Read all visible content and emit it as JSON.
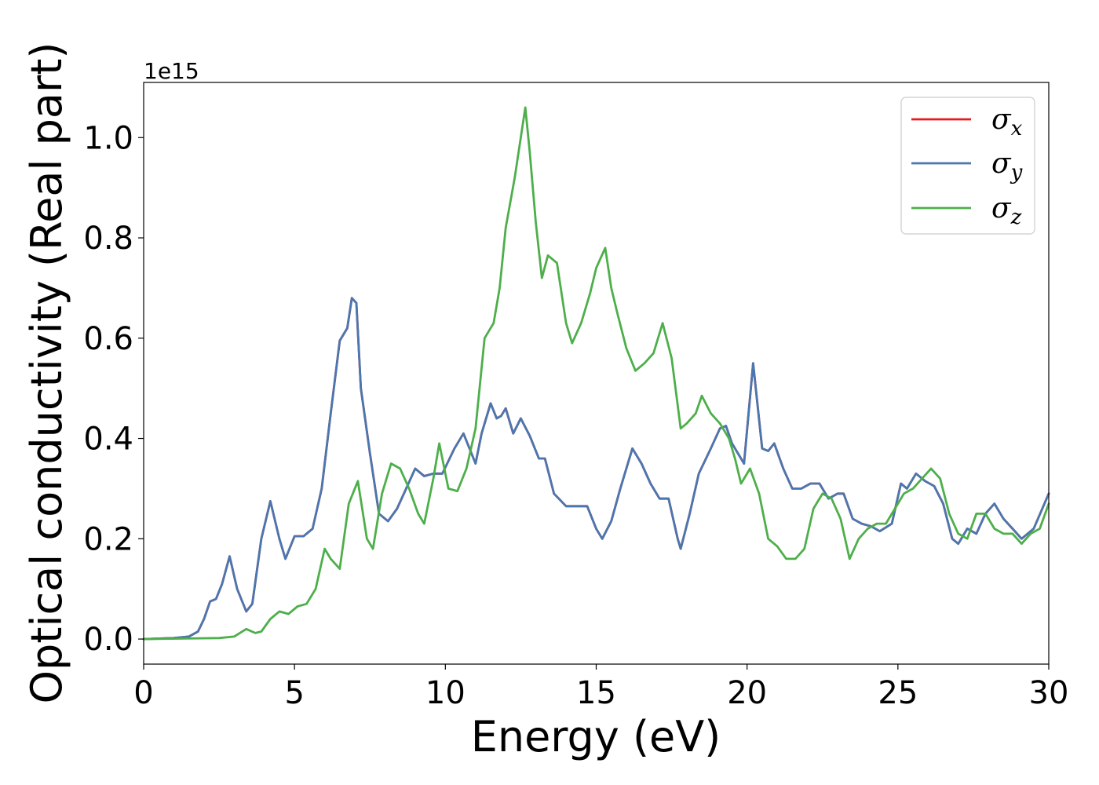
{
  "chart_data": {
    "type": "line",
    "xlabel": "Energy (eV)",
    "ylabel": "Optical conductivity (Real part)",
    "y_offset_text": "1e15",
    "xlim": [
      0,
      30
    ],
    "ylim": [
      -0.05,
      1.11
    ],
    "x_ticks": [
      0,
      5,
      10,
      15,
      20,
      25,
      30
    ],
    "x_tick_labels": [
      "0",
      "5",
      "10",
      "15",
      "20",
      "25",
      "30"
    ],
    "y_ticks": [
      0.0,
      0.2,
      0.4,
      0.6,
      0.8,
      1.0
    ],
    "y_tick_labels": [
      "0.0",
      "0.2",
      "0.4",
      "0.6",
      "0.8",
      "1.0"
    ],
    "grid": false,
    "legend_position": "top-right",
    "series": [
      {
        "name": "σx",
        "label_base": "σ",
        "label_sub": "x",
        "color": "#e41a1c",
        "x": [
          0,
          1,
          1.5,
          1.8,
          2.0,
          2.2,
          2.4,
          2.6,
          2.85,
          3.1,
          3.4,
          3.6,
          3.9,
          4.2,
          4.5,
          4.7,
          5.0,
          5.3,
          5.6,
          5.9,
          6.2,
          6.5,
          6.75,
          6.9,
          7.05,
          7.2,
          7.5,
          7.8,
          8.1,
          8.4,
          8.7,
          9.0,
          9.3,
          9.6,
          9.9,
          10.3,
          10.6,
          11.0,
          11.2,
          11.5,
          11.7,
          11.85,
          12.0,
          12.25,
          12.5,
          12.8,
          13.1,
          13.3,
          13.6,
          14.0,
          14.3,
          14.7,
          15.0,
          15.2,
          15.5,
          15.8,
          16.2,
          16.5,
          16.8,
          17.1,
          17.4,
          17.7,
          17.8,
          18.1,
          18.4,
          18.8,
          19.1,
          19.3,
          19.5,
          19.9,
          20.2,
          20.5,
          20.7,
          20.9,
          21.2,
          21.5,
          21.8,
          22.1,
          22.4,
          22.7,
          23.0,
          23.2,
          23.5,
          23.8,
          24.1,
          24.4,
          24.8,
          25.1,
          25.3,
          25.6,
          25.9,
          26.2,
          26.5,
          26.8,
          27.0,
          27.3,
          27.6,
          27.9,
          28.2,
          28.5,
          28.8,
          29.1,
          29.5,
          30
        ],
        "y": [
          0,
          0.002,
          0.005,
          0.015,
          0.04,
          0.075,
          0.08,
          0.11,
          0.165,
          0.1,
          0.055,
          0.07,
          0.2,
          0.275,
          0.2,
          0.16,
          0.205,
          0.205,
          0.22,
          0.3,
          0.45,
          0.595,
          0.62,
          0.68,
          0.67,
          0.5,
          0.37,
          0.25,
          0.235,
          0.26,
          0.3,
          0.34,
          0.325,
          0.33,
          0.33,
          0.38,
          0.41,
          0.35,
          0.41,
          0.47,
          0.44,
          0.445,
          0.46,
          0.41,
          0.44,
          0.405,
          0.36,
          0.36,
          0.29,
          0.265,
          0.265,
          0.265,
          0.22,
          0.2,
          0.235,
          0.3,
          0.38,
          0.35,
          0.31,
          0.28,
          0.28,
          0.2,
          0.18,
          0.25,
          0.33,
          0.38,
          0.42,
          0.425,
          0.39,
          0.35,
          0.55,
          0.38,
          0.375,
          0.39,
          0.34,
          0.3,
          0.3,
          0.31,
          0.31,
          0.28,
          0.29,
          0.29,
          0.24,
          0.23,
          0.225,
          0.215,
          0.23,
          0.31,
          0.3,
          0.33,
          0.315,
          0.305,
          0.27,
          0.2,
          0.19,
          0.22,
          0.21,
          0.25,
          0.27,
          0.24,
          0.22,
          0.2,
          0.22,
          0.29
        ]
      },
      {
        "name": "σy",
        "label_base": "σ",
        "label_sub": "y",
        "color": "#4a77b0",
        "x": [
          0,
          1,
          1.5,
          1.8,
          2.0,
          2.2,
          2.4,
          2.6,
          2.85,
          3.1,
          3.4,
          3.6,
          3.9,
          4.2,
          4.5,
          4.7,
          5.0,
          5.3,
          5.6,
          5.9,
          6.2,
          6.5,
          6.75,
          6.9,
          7.05,
          7.2,
          7.5,
          7.8,
          8.1,
          8.4,
          8.7,
          9.0,
          9.3,
          9.6,
          9.9,
          10.3,
          10.6,
          11.0,
          11.2,
          11.5,
          11.7,
          11.85,
          12.0,
          12.25,
          12.5,
          12.8,
          13.1,
          13.3,
          13.6,
          14.0,
          14.3,
          14.7,
          15.0,
          15.2,
          15.5,
          15.8,
          16.2,
          16.5,
          16.8,
          17.1,
          17.4,
          17.7,
          17.8,
          18.1,
          18.4,
          18.8,
          19.1,
          19.3,
          19.5,
          19.9,
          20.2,
          20.5,
          20.7,
          20.9,
          21.2,
          21.5,
          21.8,
          22.1,
          22.4,
          22.7,
          23.0,
          23.2,
          23.5,
          23.8,
          24.1,
          24.4,
          24.8,
          25.1,
          25.3,
          25.6,
          25.9,
          26.2,
          26.5,
          26.8,
          27.0,
          27.3,
          27.6,
          27.9,
          28.2,
          28.5,
          28.8,
          29.1,
          29.5,
          30
        ],
        "y": [
          0,
          0.002,
          0.005,
          0.015,
          0.04,
          0.075,
          0.08,
          0.11,
          0.165,
          0.1,
          0.055,
          0.07,
          0.2,
          0.275,
          0.2,
          0.16,
          0.205,
          0.205,
          0.22,
          0.3,
          0.45,
          0.595,
          0.62,
          0.68,
          0.67,
          0.5,
          0.37,
          0.25,
          0.235,
          0.26,
          0.3,
          0.34,
          0.325,
          0.33,
          0.33,
          0.38,
          0.41,
          0.35,
          0.41,
          0.47,
          0.44,
          0.445,
          0.46,
          0.41,
          0.44,
          0.405,
          0.36,
          0.36,
          0.29,
          0.265,
          0.265,
          0.265,
          0.22,
          0.2,
          0.235,
          0.3,
          0.38,
          0.35,
          0.31,
          0.28,
          0.28,
          0.2,
          0.18,
          0.25,
          0.33,
          0.38,
          0.42,
          0.425,
          0.39,
          0.35,
          0.55,
          0.38,
          0.375,
          0.39,
          0.34,
          0.3,
          0.3,
          0.31,
          0.31,
          0.28,
          0.29,
          0.29,
          0.24,
          0.23,
          0.225,
          0.215,
          0.23,
          0.31,
          0.3,
          0.33,
          0.315,
          0.305,
          0.27,
          0.2,
          0.19,
          0.22,
          0.21,
          0.25,
          0.27,
          0.24,
          0.22,
          0.2,
          0.22,
          0.29
        ]
      },
      {
        "name": "σz",
        "label_base": "σ",
        "label_sub": "z",
        "color": "#4daf4a",
        "x": [
          0,
          2.5,
          3.0,
          3.4,
          3.7,
          3.9,
          4.2,
          4.5,
          4.8,
          5.1,
          5.4,
          5.7,
          6.0,
          6.2,
          6.5,
          6.8,
          7.1,
          7.4,
          7.6,
          7.9,
          8.2,
          8.5,
          8.8,
          9.1,
          9.3,
          9.6,
          9.8,
          10.1,
          10.4,
          10.7,
          11.0,
          11.3,
          11.6,
          11.8,
          12.0,
          12.3,
          12.5,
          12.65,
          12.8,
          13.0,
          13.2,
          13.4,
          13.7,
          14.0,
          14.2,
          14.5,
          14.8,
          15.0,
          15.3,
          15.5,
          15.7,
          16.0,
          16.3,
          16.6,
          16.9,
          17.2,
          17.5,
          17.8,
          18.0,
          18.3,
          18.5,
          18.8,
          19.1,
          19.4,
          19.6,
          19.8,
          20.1,
          20.4,
          20.7,
          21.0,
          21.3,
          21.6,
          21.9,
          22.2,
          22.5,
          22.8,
          23.1,
          23.4,
          23.7,
          24.0,
          24.3,
          24.6,
          24.9,
          25.2,
          25.5,
          25.8,
          26.1,
          26.4,
          26.7,
          27.0,
          27.3,
          27.6,
          27.9,
          28.2,
          28.5,
          28.8,
          29.1,
          29.4,
          29.7,
          30
        ],
        "y": [
          0,
          0.002,
          0.005,
          0.02,
          0.012,
          0.015,
          0.04,
          0.055,
          0.05,
          0.065,
          0.07,
          0.1,
          0.18,
          0.16,
          0.14,
          0.27,
          0.315,
          0.2,
          0.18,
          0.29,
          0.35,
          0.34,
          0.3,
          0.25,
          0.23,
          0.32,
          0.39,
          0.3,
          0.295,
          0.34,
          0.42,
          0.6,
          0.63,
          0.7,
          0.82,
          0.92,
          1.0,
          1.06,
          0.97,
          0.83,
          0.72,
          0.765,
          0.75,
          0.63,
          0.59,
          0.63,
          0.69,
          0.74,
          0.78,
          0.7,
          0.65,
          0.58,
          0.535,
          0.55,
          0.57,
          0.63,
          0.56,
          0.42,
          0.43,
          0.45,
          0.485,
          0.45,
          0.43,
          0.4,
          0.36,
          0.31,
          0.34,
          0.29,
          0.2,
          0.185,
          0.16,
          0.16,
          0.18,
          0.26,
          0.29,
          0.28,
          0.24,
          0.16,
          0.2,
          0.22,
          0.23,
          0.23,
          0.26,
          0.29,
          0.3,
          0.32,
          0.34,
          0.32,
          0.25,
          0.21,
          0.2,
          0.25,
          0.25,
          0.22,
          0.21,
          0.21,
          0.19,
          0.21,
          0.22,
          0.27
        ]
      }
    ]
  }
}
